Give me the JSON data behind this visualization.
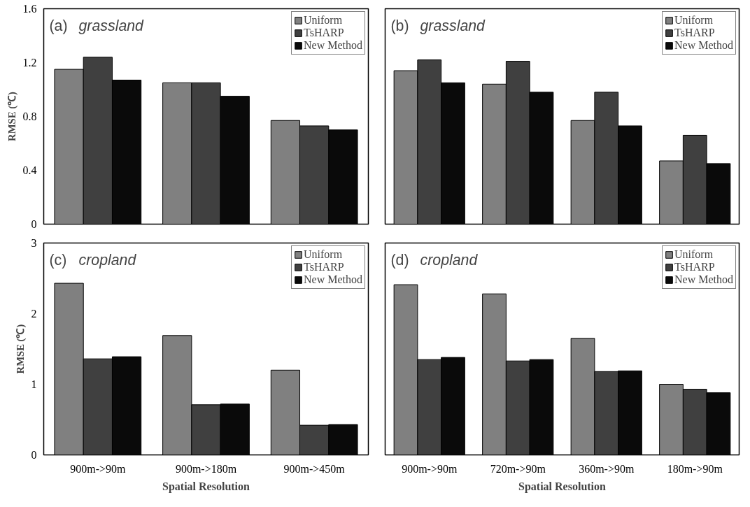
{
  "chart_data": [
    {
      "type": "bar",
      "annotations": [
        "(a) grassland"
      ],
      "ylabel": "RMSE (℃)",
      "categories": [
        null,
        null,
        null
      ],
      "ylim": [
        0,
        1.6
      ],
      "yticks": [
        0,
        0.4,
        0.8,
        1.2,
        1.6
      ],
      "tick_labels": "y",
      "legend": "top right",
      "grid": false,
      "series": [
        {
          "name": "Uniform",
          "color": "#808080",
          "values": [
            1.15,
            1.05,
            0.77
          ]
        },
        {
          "name": "TsHARP",
          "color": "#404040",
          "values": [
            1.24,
            1.05,
            0.73
          ]
        },
        {
          "name": "New Method",
          "color": "#0a0a0a",
          "values": [
            1.07,
            0.95,
            0.7
          ]
        }
      ]
    },
    {
      "type": "bar",
      "annotations": [
        "(b) grassland"
      ],
      "categories": [
        null,
        null,
        null,
        null
      ],
      "ylim": [
        0,
        1.6
      ],
      "yticks": [
        0,
        0.4,
        0.8,
        1.2,
        1.6
      ],
      "tick_labels": false,
      "legend": "top right",
      "grid": false,
      "series": [
        {
          "name": "Uniform",
          "color": "#808080",
          "values": [
            1.14,
            1.04,
            0.77,
            0.47
          ]
        },
        {
          "name": "TsHARP",
          "color": "#404040",
          "values": [
            1.22,
            1.21,
            0.98,
            0.66
          ]
        },
        {
          "name": "New Method",
          "color": "#0a0a0a",
          "values": [
            1.05,
            0.98,
            0.73,
            0.45
          ]
        }
      ]
    },
    {
      "type": "bar",
      "annotations": [
        "(c) cropland"
      ],
      "ylabel": "RMSE (℃)",
      "xlabel": "Spatial Resolution",
      "categories": [
        "900m->90m",
        "900m->180m",
        "900m->450m"
      ],
      "ylim": [
        0,
        3
      ],
      "yticks": [
        0,
        1,
        2,
        3
      ],
      "legend": "top right",
      "grid": false,
      "series": [
        {
          "name": "Uniform",
          "color": "#808080",
          "values": [
            2.43,
            1.69,
            1.2
          ]
        },
        {
          "name": "TsHARP",
          "color": "#404040",
          "values": [
            1.36,
            0.71,
            0.42
          ]
        },
        {
          "name": "New Method",
          "color": "#0a0a0a",
          "values": [
            1.39,
            0.72,
            0.43
          ]
        }
      ]
    },
    {
      "type": "bar",
      "annotations": [
        "(d) cropland"
      ],
      "xlabel": "Spatial Resolution",
      "categories": [
        "900m->90m",
        "720m->90m",
        "360m->90m",
        "180m->90m"
      ],
      "ylim": [
        0,
        3
      ],
      "yticks": [
        0,
        1,
        2,
        3
      ],
      "tick_labels": "x",
      "legend": "top right",
      "grid": false,
      "series": [
        {
          "name": "Uniform",
          "color": "#808080",
          "values": [
            2.41,
            2.28,
            1.65,
            1.0
          ]
        },
        {
          "name": "TsHARP",
          "color": "#404040",
          "values": [
            1.35,
            1.33,
            1.18,
            0.93
          ]
        },
        {
          "name": "New Method",
          "color": "#0a0a0a",
          "values": [
            1.38,
            1.35,
            1.19,
            0.88
          ]
        }
      ]
    }
  ]
}
